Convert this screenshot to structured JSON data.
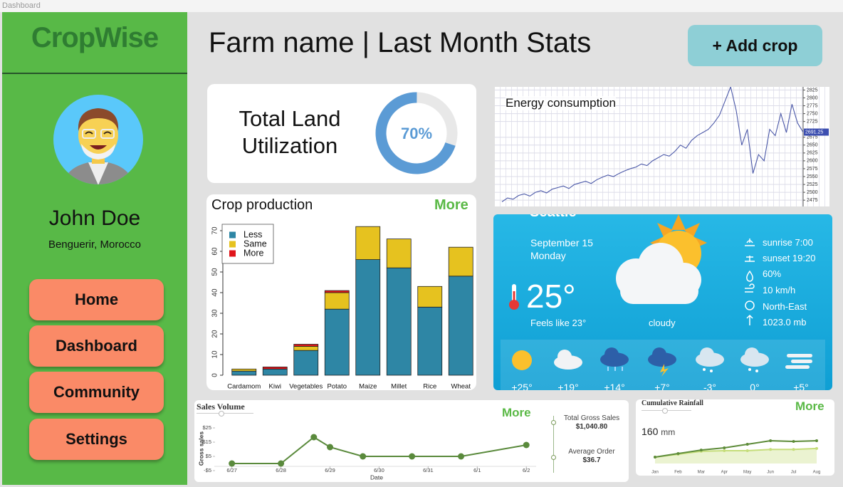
{
  "window_title": "Dashboard",
  "sidebar": {
    "brand": "CropWise",
    "user_name": "John Doe",
    "location": "Benguerir, Morocco",
    "nav": [
      "Home",
      "Dashboard",
      "Community",
      "Settings"
    ]
  },
  "header": {
    "title": "Farm name | Last Month Stats",
    "button": "+ Add crop"
  },
  "land": {
    "title": "Total Land Utilization",
    "value": 70,
    "value_label": "70%"
  },
  "weather": {
    "city": "Seattle",
    "date": "September 15",
    "weekday": "Monday",
    "temperature": "25°",
    "feels_like": "Feels like 23°",
    "condition": "cloudy",
    "details": [
      "sunrise 7:00",
      "sunset 19:20",
      "60%",
      "10 km/h",
      "North-East",
      "1023.0 mb"
    ],
    "forecast": [
      "+25°",
      "+19°",
      "+14°",
      "+7°",
      "-3°",
      "0°",
      "+5°"
    ]
  },
  "sales_summary": [
    {
      "label": "Total Gross Sales",
      "value": "$1,040.80"
    },
    {
      "label": "Average Order",
      "value": "$36.7"
    }
  ],
  "chart_data": [
    {
      "type": "bar",
      "stacked": true,
      "title": "Crop production",
      "link": "More",
      "categories": [
        "Cardamom",
        "Kiwi",
        "Vegetables",
        "Potato",
        "Maize",
        "Millet",
        "Rice",
        "Wheat"
      ],
      "series": [
        {
          "name": "Less",
          "color": "#2e86a5",
          "values": [
            2,
            3,
            12,
            32,
            56,
            52,
            33,
            48
          ]
        },
        {
          "name": "Same",
          "color": "#e6c21f",
          "values": [
            1,
            0,
            2,
            8,
            16,
            14,
            10,
            14
          ]
        },
        {
          "name": "More",
          "color": "#e0161b",
          "values": [
            0,
            1,
            1,
            1,
            0,
            0,
            0,
            0
          ]
        }
      ],
      "ylim": [
        -2.5,
        74
      ],
      "yticks": [
        0,
        10,
        20,
        30,
        40,
        50,
        60,
        70
      ],
      "legend": "top-left"
    },
    {
      "type": "line",
      "title": "Energy consumption",
      "color": "#4b58a8",
      "values": [
        2470,
        2482,
        2478,
        2490,
        2495,
        2488,
        2500,
        2505,
        2498,
        2510,
        2515,
        2520,
        2512,
        2525,
        2530,
        2535,
        2528,
        2540,
        2548,
        2555,
        2550,
        2560,
        2568,
        2575,
        2580,
        2590,
        2585,
        2600,
        2610,
        2620,
        2615,
        2630,
        2650,
        2640,
        2665,
        2680,
        2690,
        2700,
        2720,
        2745,
        2790,
        2835,
        2760,
        2650,
        2700,
        2560,
        2620,
        2600,
        2700,
        2680,
        2750,
        2690,
        2780,
        2720,
        2691.25
      ],
      "value_labels": [
        null,
        null,
        null,
        null,
        null,
        null,
        null,
        null,
        null,
        null,
        null,
        null,
        null,
        null,
        null,
        null,
        null,
        null,
        null,
        null,
        null,
        null,
        null,
        null,
        null,
        null,
        null,
        null,
        null,
        null,
        null,
        null,
        null,
        null,
        null,
        null,
        null,
        null,
        null,
        null,
        null,
        null,
        null,
        null,
        null,
        null,
        null,
        null,
        null,
        null,
        null,
        null,
        null,
        null,
        "2691.25"
      ],
      "ylim": [
        2455,
        2835
      ],
      "yticks": [
        2475,
        2500,
        2525,
        2550,
        2575,
        2600,
        2625,
        2650,
        2675,
        2725,
        2750,
        2775,
        2800,
        2825
      ],
      "grid": true
    },
    {
      "type": "line",
      "title": "Sales Volume",
      "link": "More",
      "x_label": "Date",
      "y_label": "Gross sales",
      "color": "#5a8a3c",
      "x": [
        0,
        1,
        1.67,
        2,
        2.67,
        3.67,
        4.67,
        6
      ],
      "values": [
        0,
        0,
        18.5,
        11.5,
        5,
        5,
        5,
        13
      ],
      "xlim": [
        -0.3,
        6.2
      ],
      "xticks": [
        {
          "value": 0,
          "label": "6/27"
        },
        {
          "value": 1,
          "label": "6/28"
        },
        {
          "value": 2,
          "label": "6/29"
        },
        {
          "value": 3,
          "label": "6/30"
        },
        {
          "value": 4,
          "label": "6/31"
        },
        {
          "value": 5,
          "label": "6/1"
        },
        {
          "value": 6,
          "label": "6/2"
        }
      ],
      "ylim": [
        -7,
        28
      ],
      "yticks": [
        {
          "value": 25,
          "label": "$25"
        },
        {
          "value": 15,
          "label": "$15"
        },
        {
          "value": 5,
          "label": "$5"
        },
        {
          "value": -5,
          "label": "-$5"
        }
      ]
    },
    {
      "type": "line",
      "title": "Cumulative Rainfall",
      "link": "More",
      "total": 160,
      "total_unit": "mm",
      "categories": [
        "Jan",
        "Feb",
        "Mar",
        "Apr",
        "May",
        "Jun",
        "Jul",
        "Aug"
      ],
      "series": [
        {
          "color": "#c5dd7a",
          "area": true,
          "values": [
            20,
            29,
            38,
            40,
            40,
            44,
            44,
            47
          ]
        },
        {
          "color": "#5e8c3a",
          "values": [
            20,
            31,
            42,
            49,
            60,
            71,
            69,
            71
          ]
        }
      ],
      "ylim": [
        0,
        100
      ]
    }
  ]
}
